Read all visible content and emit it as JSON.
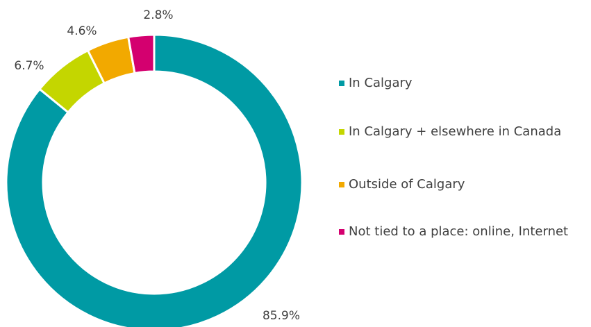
{
  "chart_data": {
    "type": "donut",
    "categories": [
      "In Calgary",
      "In Calgary + elsewhere in Canada",
      "Outside of Calgary",
      "Not tied to a place:  online, Internet"
    ],
    "values": [
      85.9,
      6.7,
      4.6,
      2.8
    ],
    "value_labels": [
      "85.9%",
      "6.7%",
      "4.6%",
      "2.8%"
    ],
    "colors": [
      "#009aa4",
      "#c4d600",
      "#f2a900",
      "#d4006f"
    ],
    "legend": "right"
  }
}
